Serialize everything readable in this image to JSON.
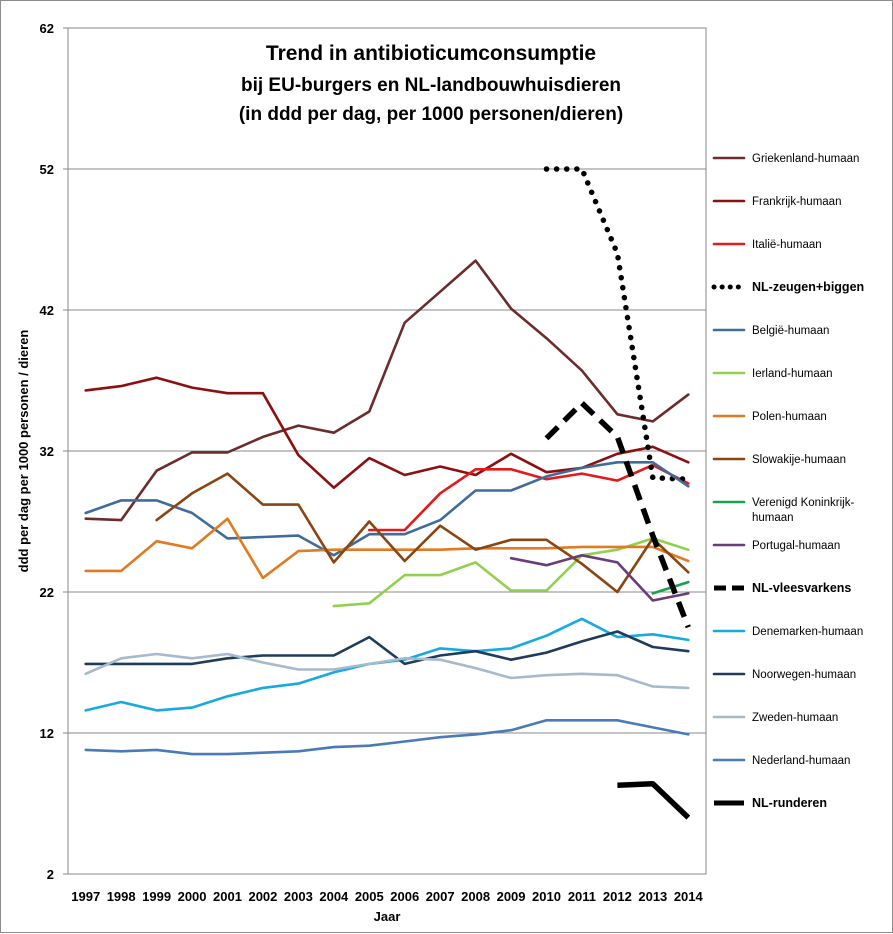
{
  "chart_data": {
    "type": "line",
    "title": "Trend in antibioticumconsumptie",
    "subtitle_lines": [
      "bij EU-burgers en NL-landbouwhuisdieren",
      "(in ddd per dag, per 1000 personen/dieren)"
    ],
    "xlabel": "Jaar",
    "ylabel": "ddd per dag per 1000 personen / dieren",
    "x": [
      "1997",
      "1998",
      "1999",
      "2000",
      "2001",
      "2002",
      "2003",
      "2004",
      "2005",
      "2006",
      "2007",
      "2008",
      "2009",
      "2010",
      "2011",
      "2012",
      "2013",
      "2014"
    ],
    "ylim": [
      2,
      62
    ],
    "yticks": [
      "2",
      "12",
      "22",
      "32",
      "42",
      "52",
      "62"
    ],
    "grid": "horizontal",
    "legend_position": "right",
    "series": [
      {
        "name": "Griekenland-humaan",
        "color": "#6b2c2c",
        "style": "solid",
        "values": [
          27.2,
          27.1,
          30.6,
          31.9,
          31.9,
          33.0,
          33.8,
          33.3,
          34.8,
          41.1,
          43.3,
          45.5,
          42.1,
          40.0,
          37.7,
          34.6,
          34.1,
          36.0
        ]
      },
      {
        "name": "Frankrijk-humaan",
        "color": "#8b1010",
        "style": "solid",
        "values": [
          36.3,
          36.6,
          37.2,
          36.5,
          36.1,
          36.1,
          31.7,
          29.4,
          31.5,
          30.3,
          30.9,
          30.3,
          31.8,
          30.5,
          30.8,
          31.8,
          32.3,
          31.2
        ]
      },
      {
        "name": "Italië-humaan",
        "color": "#e31a1c",
        "style": "solid",
        "values": [
          null,
          null,
          null,
          null,
          null,
          null,
          null,
          null,
          26.4,
          26.4,
          29.0,
          30.7,
          30.7,
          30.0,
          30.4,
          29.9,
          31.0,
          29.7
        ]
      },
      {
        "name": "NL-zeugen+biggen",
        "color": "#000000",
        "style": "dotted",
        "values": [
          null,
          null,
          null,
          null,
          null,
          null,
          null,
          null,
          null,
          null,
          null,
          null,
          null,
          52.0,
          52.0,
          46.0,
          30.1,
          30.0
        ]
      },
      {
        "name": "België-humaan",
        "color": "#3f6c9a",
        "style": "solid",
        "values": [
          27.6,
          28.5,
          28.5,
          27.6,
          25.8,
          25.9,
          26.0,
          24.6,
          26.1,
          26.1,
          27.1,
          29.2,
          29.2,
          30.2,
          30.8,
          31.2,
          31.2,
          29.5
        ]
      },
      {
        "name": "Ierland-humaan",
        "color": "#92d050",
        "style": "solid",
        "values": [
          null,
          null,
          null,
          null,
          null,
          null,
          null,
          21.0,
          21.2,
          23.2,
          23.2,
          24.1,
          22.1,
          22.1,
          24.6,
          25.0,
          25.8,
          25.0
        ]
      },
      {
        "name": "Polen-humaan",
        "color": "#e07b22",
        "style": "solid",
        "values": [
          23.5,
          23.5,
          25.6,
          25.1,
          27.2,
          23.0,
          24.9,
          25.0,
          25.0,
          25.0,
          25.0,
          25.1,
          25.1,
          25.1,
          25.2,
          25.2,
          25.2,
          24.2
        ]
      },
      {
        "name": "Slowakije-humaan",
        "color": "#8b4513",
        "style": "solid",
        "values": [
          null,
          null,
          27.1,
          29.0,
          30.4,
          28.2,
          28.2,
          24.1,
          27.0,
          24.2,
          26.7,
          25.0,
          25.7,
          25.7,
          24.0,
          22.0,
          25.8,
          23.4
        ]
      },
      {
        "name": "Verenigd Koninkrijk-humaan",
        "color": "#16a34a",
        "style": "solid",
        "values": [
          null,
          null,
          null,
          null,
          null,
          null,
          null,
          null,
          null,
          null,
          null,
          null,
          null,
          null,
          null,
          null,
          21.9,
          22.7
        ]
      },
      {
        "name": "Portugal-humaan",
        "color": "#6a3d7a",
        "style": "solid",
        "values": [
          null,
          null,
          null,
          null,
          null,
          null,
          null,
          null,
          24.4,
          null,
          null,
          null,
          24.4,
          23.9,
          24.6,
          24.1,
          21.4,
          21.9
        ]
      },
      {
        "name": "NL-vleesvarkens",
        "color": "#000000",
        "style": "dashed",
        "values": [
          null,
          null,
          null,
          null,
          null,
          null,
          null,
          null,
          null,
          null,
          null,
          null,
          null,
          32.9,
          35.4,
          33.0,
          26.0,
          19.5
        ]
      },
      {
        "name": "Denemarken-humaan",
        "color": "#18a9e0",
        "style": "solid",
        "values": [
          13.6,
          14.2,
          13.6,
          13.8,
          14.6,
          15.2,
          15.5,
          16.3,
          16.9,
          17.2,
          18.0,
          17.8,
          18.0,
          18.9,
          20.1,
          18.8,
          19.0,
          18.6
        ]
      },
      {
        "name": "Noorwegen-humaan",
        "color": "#1f3c5a",
        "style": "solid",
        "values": [
          16.9,
          16.9,
          16.9,
          16.9,
          17.3,
          17.5,
          17.5,
          17.5,
          18.8,
          16.9,
          17.5,
          17.8,
          17.2,
          17.7,
          18.5,
          19.2,
          18.1,
          17.8
        ]
      },
      {
        "name": "Zweden-humaan",
        "color": "#a7b9cc",
        "style": "solid",
        "values": [
          16.2,
          17.3,
          17.6,
          17.3,
          17.6,
          17.0,
          16.5,
          16.5,
          16.9,
          17.3,
          17.2,
          16.6,
          15.9,
          16.1,
          16.2,
          16.1,
          15.3,
          15.2
        ]
      },
      {
        "name": "Nederland-humaan",
        "color": "#4a7bb7",
        "style": "solid",
        "values": [
          10.8,
          10.7,
          10.8,
          10.5,
          10.5,
          10.6,
          10.7,
          11.0,
          11.1,
          11.4,
          11.7,
          11.9,
          12.2,
          12.9,
          12.9,
          12.9,
          12.4,
          11.9
        ]
      },
      {
        "name": "NL-runderen",
        "color": "#000000",
        "style": "thick",
        "values": [
          null,
          null,
          null,
          null,
          null,
          null,
          null,
          null,
          null,
          null,
          null,
          null,
          null,
          null,
          null,
          8.3,
          8.4,
          6.0
        ]
      }
    ]
  }
}
